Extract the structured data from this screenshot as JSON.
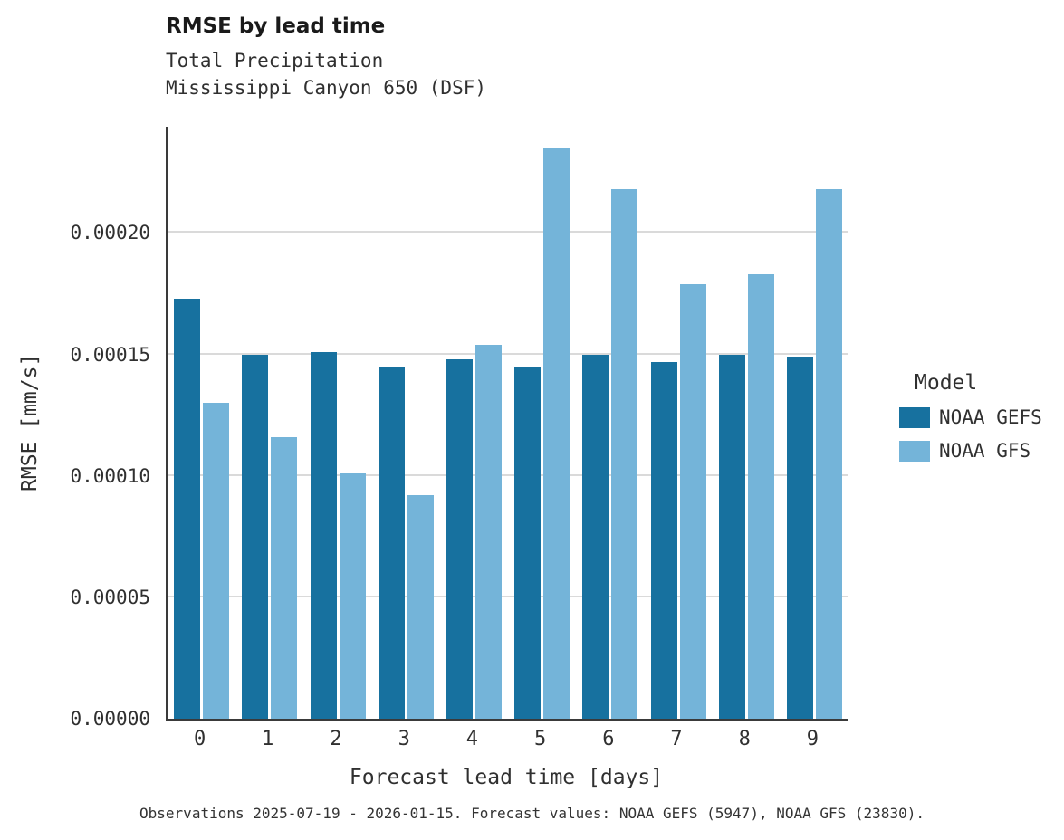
{
  "header": {
    "title": "RMSE by lead time",
    "subtitle1": "Total Precipitation",
    "subtitle2": "Mississippi Canyon 650 (DSF)"
  },
  "axes": {
    "x_label": "Forecast lead time [days]",
    "y_label": "RMSE [mm/s]"
  },
  "legend": {
    "title": "Model",
    "entries": [
      "NOAA GEFS",
      "NOAA GFS"
    ]
  },
  "caption": "Observations 2025-07-19 - 2026-01-15. Forecast values: NOAA GEFS (5947), NOAA GFS (23830).",
  "colors": {
    "noaa_gefs": "#17719f",
    "noaa_gfs": "#74b4d9",
    "gridline": "#dadada",
    "axis": "#3a3a3a",
    "text": "#303030"
  },
  "chart_data": {
    "type": "bar",
    "title": "RMSE by lead time",
    "subtitle": "Total Precipitation — Mississippi Canyon 650 (DSF)",
    "xlabel": "Forecast lead time [days]",
    "ylabel": "RMSE [mm/s]",
    "categories": [
      "0",
      "1",
      "2",
      "3",
      "4",
      "5",
      "6",
      "7",
      "8",
      "9"
    ],
    "series": [
      {
        "name": "NOAA GEFS",
        "color": "#17719f",
        "values": [
          0.000173,
          0.00015,
          0.000151,
          0.000145,
          0.000148,
          0.000145,
          0.00015,
          0.000147,
          0.00015,
          0.000149
        ]
      },
      {
        "name": "NOAA GFS",
        "color": "#74b4d9",
        "values": [
          0.00013,
          0.000116,
          0.000101,
          9.2e-05,
          0.000154,
          0.000235,
          0.000218,
          0.000179,
          0.000183,
          0.000218
        ]
      }
    ],
    "ylim": [
      0,
      0.00024375
    ],
    "yticks": [
      {
        "label": "0.00000",
        "value": 0.0
      },
      {
        "label": "0.00005",
        "value": 5e-05
      },
      {
        "label": "0.00010",
        "value": 0.0001
      },
      {
        "label": "0.00015",
        "value": 0.00015
      },
      {
        "label": "0.00020",
        "value": 0.0002
      }
    ],
    "grid": "horizontal",
    "legend_position": "right",
    "legend_title": "Model"
  }
}
